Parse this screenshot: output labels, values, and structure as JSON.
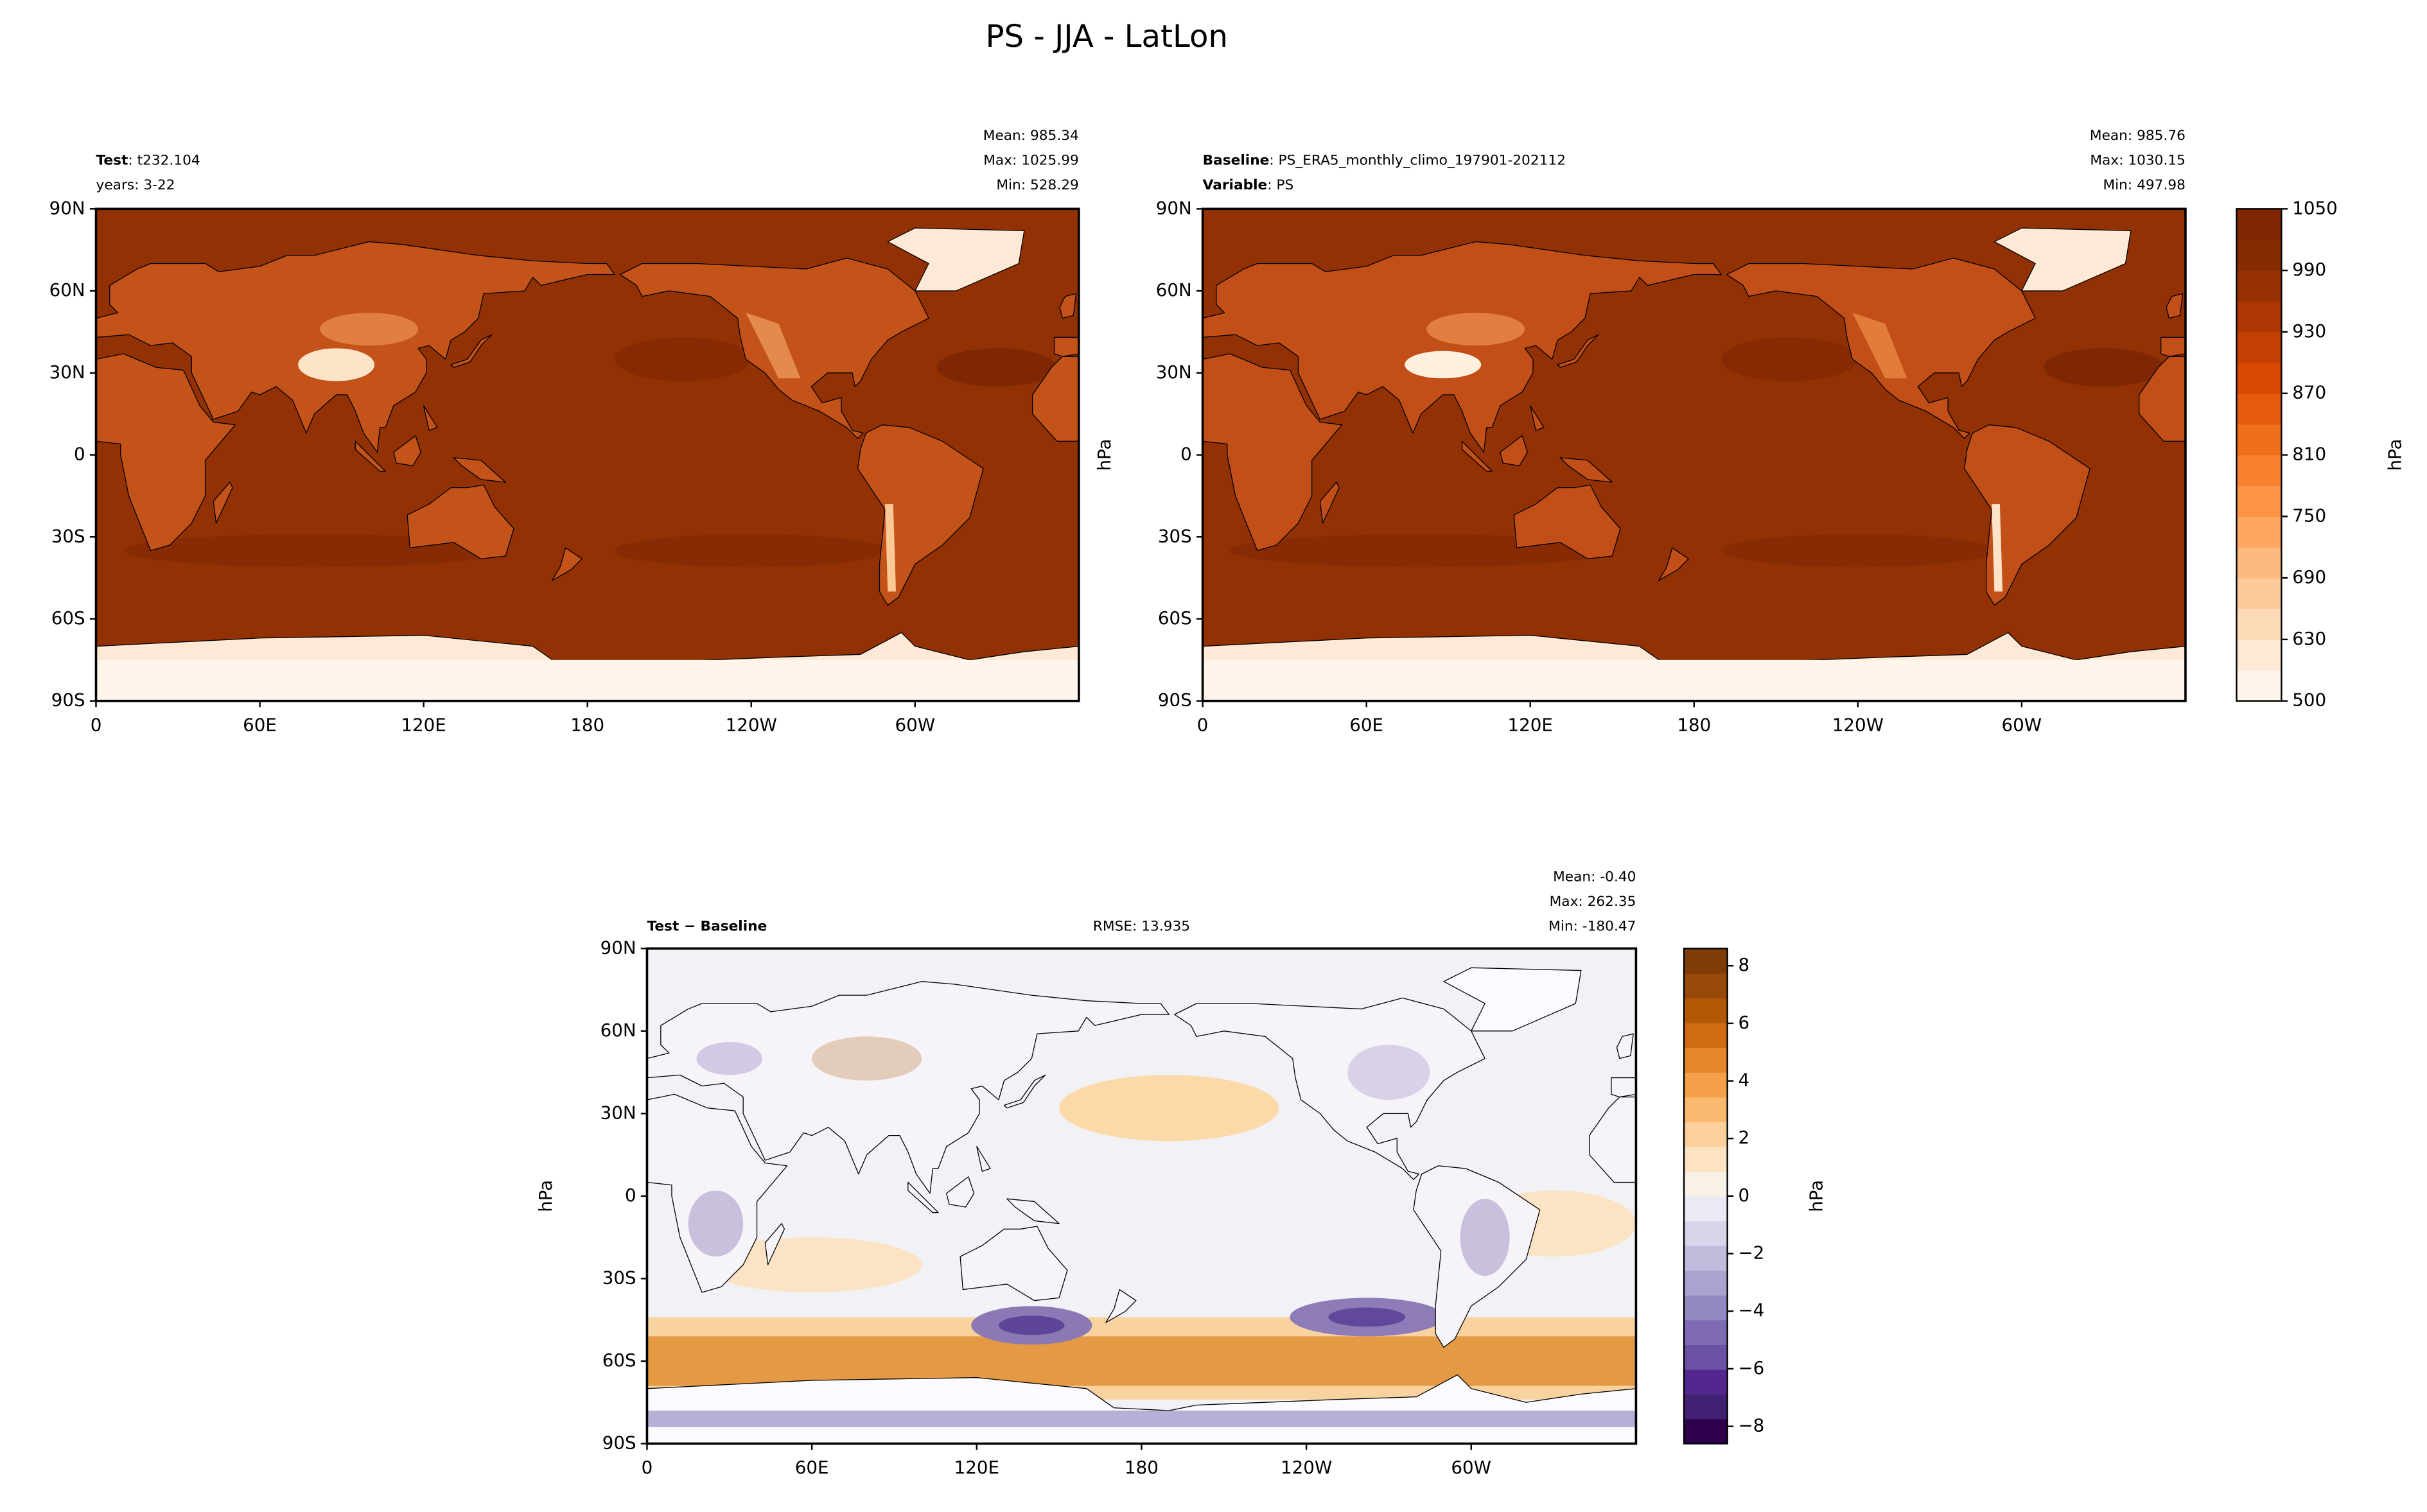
{
  "title": "PS - JJA - LatLon",
  "chart_data": [
    {
      "type": "map",
      "header": [
        {
          "key": "Test",
          "text": ": t232.104"
        },
        {
          "text": "years: 3-22"
        }
      ],
      "stats": [
        "Mean: 985.34",
        "Max: 1025.99",
        "Min: 528.29"
      ],
      "xlim": [
        0,
        360
      ],
      "xticks": [
        0,
        {
          "value": 60,
          "label": "60E"
        },
        {
          "value": 120,
          "label": "120E"
        },
        180,
        {
          "value": 240,
          "label": "120W"
        },
        {
          "value": 300,
          "label": "60W"
        }
      ],
      "ylim": [
        -90,
        90
      ],
      "yticks": [
        {
          "value": -90,
          "label": "90S"
        },
        {
          "value": -60,
          "label": "60S"
        },
        {
          "value": -30,
          "label": "30S"
        },
        0,
        {
          "value": 30,
          "label": "30N"
        },
        {
          "value": 60,
          "label": "60N"
        },
        {
          "value": 90,
          "label": "90N"
        }
      ]
    },
    {
      "type": "map",
      "header": [
        {
          "key": "Baseline",
          "text": ": PS_ERA5_monthly_climo_197901-202112"
        },
        {
          "key": "Variable",
          "text": ": PS"
        }
      ],
      "stats": [
        "Mean: 985.76",
        "Max: 1030.15",
        "Min: 497.98"
      ],
      "ylabel": "hPa",
      "xlim": [
        0,
        360
      ],
      "xticks": [
        0,
        {
          "value": 60,
          "label": "60E"
        },
        {
          "value": 120,
          "label": "120E"
        },
        180,
        {
          "value": 240,
          "label": "120W"
        },
        {
          "value": 300,
          "label": "60W"
        }
      ],
      "ylim": [
        -90,
        90
      ],
      "yticks": [
        {
          "value": -90,
          "label": "90S"
        },
        {
          "value": -60,
          "label": "60S"
        },
        {
          "value": -30,
          "label": "30S"
        },
        0,
        {
          "value": 30,
          "label": "30N"
        },
        {
          "value": 60,
          "label": "60N"
        },
        {
          "value": 90,
          "label": "90N"
        }
      ],
      "colorbar": {
        "label": "hPa",
        "boundaries": [
          500,
          600,
          630,
          660,
          690,
          720,
          750,
          780,
          810,
          840,
          870,
          900,
          930,
          960,
          990,
          1020,
          1050
        ],
        "colors": [
          "#fff5eb",
          "#fee9d4",
          "#fddbb8",
          "#fdcb9b",
          "#fdb97d",
          "#fda762",
          "#fd9446",
          "#f9812f",
          "#f16e1d",
          "#e55b0d",
          "#d94901",
          "#c44103",
          "#ad3803",
          "#963103",
          "#852c03",
          "#7f2704"
        ],
        "ticks": [
          500,
          630,
          690,
          750,
          810,
          870,
          930,
          990,
          1050
        ]
      }
    },
    {
      "type": "map",
      "header": [
        {
          "key": "Test − Baseline"
        }
      ],
      "rmse": "RMSE: 13.935",
      "stats": [
        "Mean: -0.40",
        "Max: 262.35",
        "Min: -180.47"
      ],
      "ylabel": "hPa",
      "xlim": [
        0,
        360
      ],
      "xticks": [
        0,
        {
          "value": 60,
          "label": "60E"
        },
        {
          "value": 120,
          "label": "120E"
        },
        180,
        {
          "value": 240,
          "label": "120W"
        },
        {
          "value": 300,
          "label": "60W"
        }
      ],
      "ylim": [
        -90,
        90
      ],
      "yticks": [
        {
          "value": -90,
          "label": "90S"
        },
        {
          "value": -60,
          "label": "60S"
        },
        {
          "value": -30,
          "label": "30S"
        },
        0,
        {
          "value": 30,
          "label": "30N"
        },
        {
          "value": 60,
          "label": "60N"
        },
        {
          "value": 90,
          "label": "90N"
        }
      ],
      "colorbar": {
        "label": "hPa",
        "lim": [
          -8.6,
          8.6
        ],
        "colors": [
          "#2d004b",
          "#402070",
          "#54278f",
          "#6a51a3",
          "#7f6bb3",
          "#9488c0",
          "#aba2cf",
          "#c2bcdc",
          "#d8d4e9",
          "#ebe9f3",
          "#f7f1e8",
          "#fde3c1",
          "#fdd09b",
          "#fbb970",
          "#f4a04a",
          "#e48629",
          "#cf6b12",
          "#b35806",
          "#97490a",
          "#7f3b08"
        ],
        "ticks": [
          {
            "value": -8,
            "label": "−8"
          },
          {
            "value": -6,
            "label": "−6"
          },
          {
            "value": -4,
            "label": "−4"
          },
          {
            "value": -2,
            "label": "−2"
          },
          0,
          2,
          4,
          6,
          8
        ]
      }
    }
  ]
}
